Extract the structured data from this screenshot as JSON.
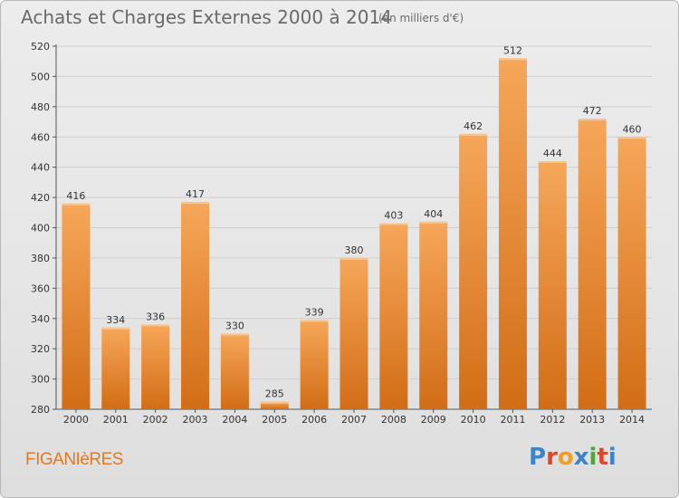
{
  "header": {
    "title": "Achats et Charges Externes 2000 à 2014",
    "subtitle": "(en milliers d'€)"
  },
  "footer": {
    "commune": "FIGANIèRES",
    "logo_text": "Proxiti"
  },
  "colors": {
    "bar_top": "#f6a75a",
    "bar_bottom": "#d26d16",
    "accent": "#e07a24"
  },
  "chart_data": {
    "type": "bar",
    "categories": [
      "2000",
      "2001",
      "2002",
      "2003",
      "2004",
      "2005",
      "2006",
      "2007",
      "2008",
      "2009",
      "2010",
      "2011",
      "2012",
      "2013",
      "2014"
    ],
    "values": [
      416,
      334,
      336,
      417,
      330,
      285,
      339,
      380,
      403,
      404,
      462,
      512,
      444,
      472,
      460
    ],
    "ylim": [
      280,
      520
    ],
    "yticks": [
      280,
      300,
      320,
      340,
      360,
      380,
      400,
      420,
      440,
      460,
      480,
      500,
      520
    ],
    "grid": true
  }
}
